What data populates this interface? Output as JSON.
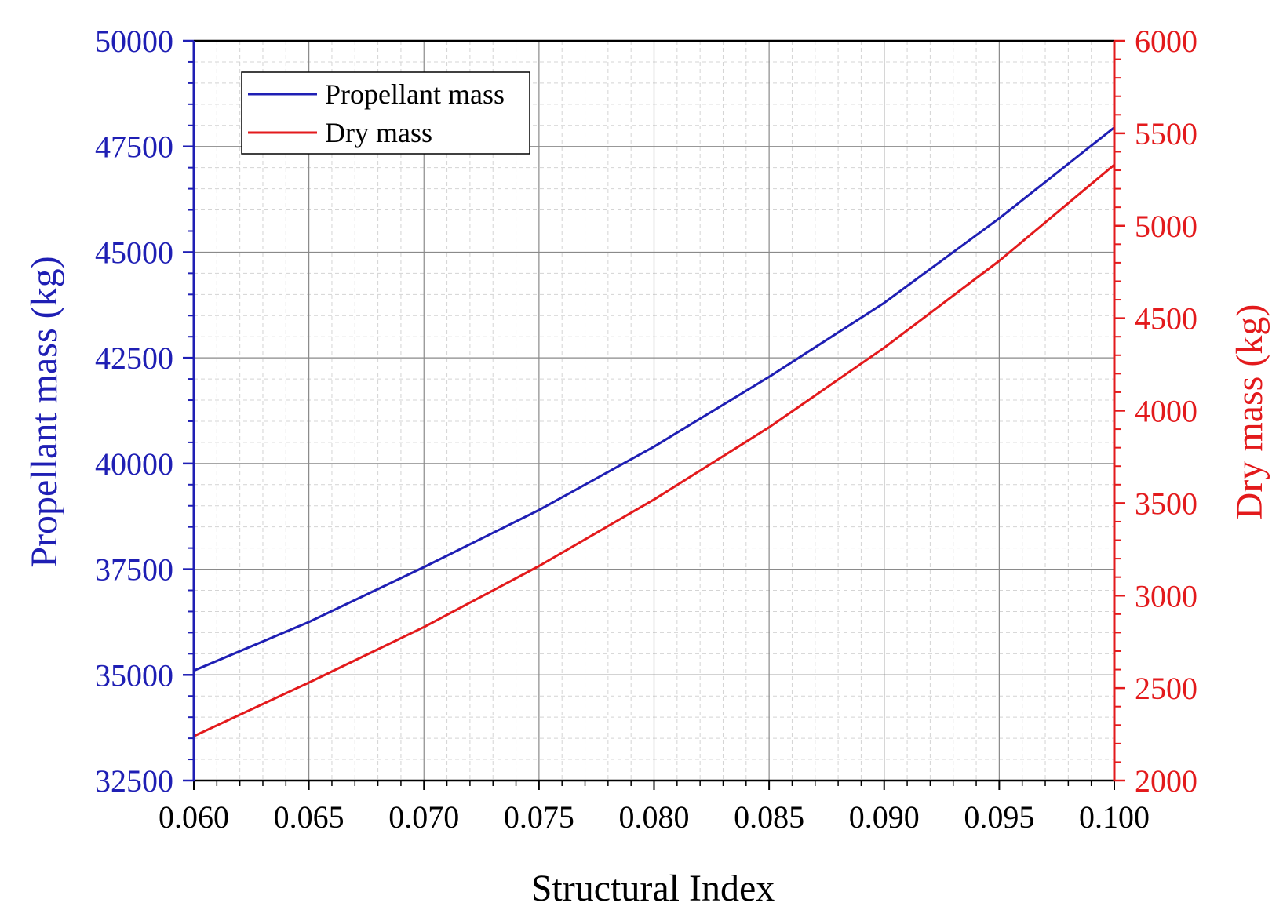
{
  "chart_data": {
    "type": "line",
    "xlabel": "Structural Index",
    "ylabel_left": "Propellant mass (kg)",
    "ylabel_right": "Dry mass (kg)",
    "xlim": [
      0.06,
      0.1
    ],
    "ylim_left": [
      32500,
      50000
    ],
    "ylim_right": [
      2000,
      6000
    ],
    "x_ticks": [
      "0.060",
      "0.065",
      "0.070",
      "0.075",
      "0.080",
      "0.085",
      "0.090",
      "0.095",
      "0.100"
    ],
    "y_ticks_left": [
      "32500",
      "35000",
      "37500",
      "40000",
      "42500",
      "45000",
      "47500",
      "50000"
    ],
    "y_ticks_right": [
      "2000",
      "2500",
      "3000",
      "3500",
      "4000",
      "4500",
      "5000",
      "5500",
      "6000"
    ],
    "grid": true,
    "legend_position": "top-left",
    "colors": {
      "left_axis": "#1f1fb4",
      "right_axis": "#e31a1c"
    },
    "series": [
      {
        "name": "Propellant mass",
        "axis": "left",
        "color": "#1f1fb4",
        "x": [
          0.06,
          0.065,
          0.07,
          0.075,
          0.08,
          0.085,
          0.09,
          0.095,
          0.1
        ],
        "y": [
          35100,
          36250,
          37550,
          38900,
          40400,
          42050,
          43800,
          45800,
          47950
        ]
      },
      {
        "name": "Dry mass",
        "axis": "right",
        "color": "#e31a1c",
        "x": [
          0.06,
          0.065,
          0.07,
          0.075,
          0.08,
          0.085,
          0.09,
          0.095,
          0.1
        ],
        "y": [
          2240,
          2530,
          2830,
          3160,
          3520,
          3910,
          4340,
          4810,
          5330
        ]
      }
    ]
  }
}
